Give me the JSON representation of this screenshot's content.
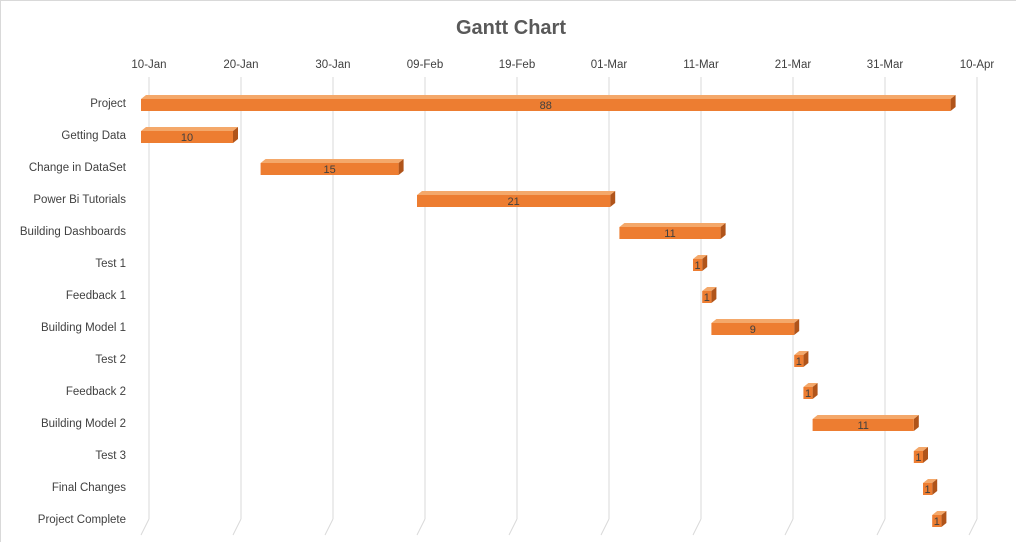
{
  "chart_data": {
    "type": "bar",
    "orientation": "horizontal",
    "style": "3d-stacked-gantt",
    "title": "Gantt Chart",
    "xlim": [
      "2019-01-10",
      "2019-04-10"
    ],
    "x_ticks": [
      "10-Jan",
      "20-Jan",
      "30-Jan",
      "09-Feb",
      "19-Feb",
      "01-Mar",
      "11-Mar",
      "21-Mar",
      "31-Mar",
      "10-Apr"
    ],
    "x_tick_step_days": 10,
    "grid": true,
    "legend": "none",
    "bar_color": "#ed7d31",
    "categories": [
      "Project",
      "Getting  Data",
      "Change in DataSet",
      "Power Bi Tutorials",
      "Building Dashboards",
      "Test 1",
      "Feedback 1",
      "Building Model 1",
      "Test 2",
      "Feedback 2",
      "Building Model 2",
      "Test 3",
      "Final Changes",
      "Project Complete"
    ],
    "tasks": [
      {
        "name": "Project",
        "start": "2019-01-10",
        "duration_days": 88,
        "label": "88"
      },
      {
        "name": "Getting  Data",
        "start": "2019-01-10",
        "duration_days": 10,
        "label": "10"
      },
      {
        "name": "Change in DataSet",
        "start": "2019-01-23",
        "duration_days": 15,
        "label": "15"
      },
      {
        "name": "Power Bi Tutorials",
        "start": "2019-02-09",
        "duration_days": 21,
        "label": "21"
      },
      {
        "name": "Building Dashboards",
        "start": "2019-03-03",
        "duration_days": 11,
        "label": "11"
      },
      {
        "name": "Test 1",
        "start": "2019-03-11",
        "duration_days": 1,
        "label": "1"
      },
      {
        "name": "Feedback 1",
        "start": "2019-03-12",
        "duration_days": 1,
        "label": "1"
      },
      {
        "name": "Building Model 1",
        "start": "2019-03-13",
        "duration_days": 9,
        "label": "9"
      },
      {
        "name": "Test 2",
        "start": "2019-03-22",
        "duration_days": 1,
        "label": "1"
      },
      {
        "name": "Feedback 2",
        "start": "2019-03-23",
        "duration_days": 1,
        "label": "1"
      },
      {
        "name": "Building Model 2",
        "start": "2019-03-24",
        "duration_days": 11,
        "label": "11"
      },
      {
        "name": "Test 3",
        "start": "2019-04-04",
        "duration_days": 1,
        "label": "1"
      },
      {
        "name": "Final Changes",
        "start": "2019-04-05",
        "duration_days": 1,
        "label": "1"
      },
      {
        "name": "Project Complete",
        "start": "2019-04-06",
        "duration_days": 1,
        "label": "1"
      }
    ]
  }
}
